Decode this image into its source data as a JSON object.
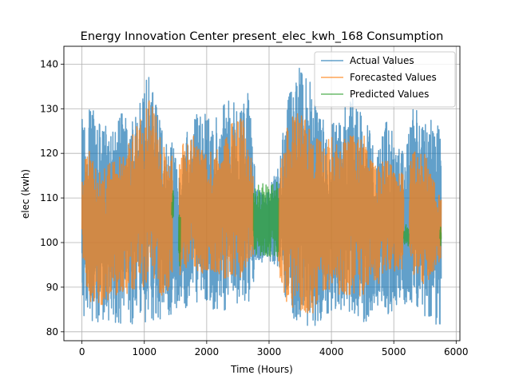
{
  "chart_data": {
    "type": "line",
    "title": "Energy Innovation Center present_elec_kwh_168 Consumption",
    "xlabel": "Time (Hours)",
    "ylabel": "elec (kwh)",
    "xlim": [
      -290,
      6060
    ],
    "ylim": [
      78,
      144
    ],
    "xticks": [
      0,
      1000,
      2000,
      3000,
      4000,
      5000,
      6000
    ],
    "yticks": [
      80,
      90,
      100,
      110,
      120,
      130,
      140
    ],
    "grid": true,
    "legend_position": "top-right",
    "series": [
      {
        "name": "Actual Values",
        "color": "#1f77b4",
        "x_range": [
          0,
          5760
        ],
        "envelope": {
          "x": [
            0,
            100,
            300,
            500,
            700,
            900,
            1000,
            1100,
            1300,
            1450,
            1550,
            1700,
            1900,
            2100,
            2300,
            2500,
            2700,
            2800,
            3000,
            3150,
            3300,
            3500,
            3700,
            3900,
            4100,
            4300,
            4500,
            4700,
            4900,
            5000,
            5100,
            5300,
            5500,
            5760
          ],
          "low": [
            83,
            82,
            82,
            82,
            81,
            82,
            81,
            82,
            83,
            84,
            86,
            85,
            87,
            84,
            84,
            85,
            86,
            95,
            96,
            93,
            84,
            82,
            81,
            82,
            85,
            84,
            82,
            83,
            84,
            84,
            86,
            86,
            83,
            81
          ],
          "high": [
            130,
            131,
            129,
            125,
            131,
            129,
            138,
            137,
            124,
            126,
            115,
            126,
            130,
            127,
            132,
            131,
            134,
            112,
            113,
            117,
            133,
            140,
            135,
            127,
            129,
            133,
            132,
            121,
            128,
            124,
            121,
            131,
            127,
            129
          ]
        }
      },
      {
        "name": "Forecasted Values",
        "color": "#ff7f0e",
        "x_range": [
          0,
          5760
        ],
        "gaps": [
          [
            1450,
            1560
          ],
          [
            2750,
            3150
          ],
          [
            5160,
            5250
          ]
        ],
        "envelope": {
          "x": [
            0,
            100,
            300,
            500,
            700,
            900,
            1000,
            1100,
            1300,
            1450,
            1600,
            1800,
            2000,
            2200,
            2400,
            2600,
            2750,
            3150,
            3300,
            3500,
            3700,
            3900,
            4100,
            4300,
            4500,
            4700,
            4900,
            5100,
            5300,
            5500,
            5760
          ],
          "low": [
            96,
            87,
            85,
            88,
            88,
            90,
            89,
            90,
            87,
            91,
            93,
            94,
            92,
            92,
            91,
            92,
            96,
            92,
            86,
            83,
            84,
            87,
            88,
            88,
            88,
            90,
            92,
            94,
            93,
            90,
            95
          ],
          "high": [
            116,
            122,
            117,
            118,
            121,
            127,
            132,
            133,
            122,
            120,
            122,
            124,
            120,
            121,
            128,
            128,
            116,
            114,
            127,
            130,
            124,
            123,
            124,
            124,
            125,
            118,
            120,
            116,
            121,
            120,
            110
          ]
        }
      },
      {
        "name": "Predicted Values",
        "color": "#2ca02c",
        "x_range": [
          1440,
          5760
        ],
        "segments": [
          {
            "x": [
              1440,
              1470
            ],
            "low": 104,
            "high": 112
          },
          {
            "x": [
              1550,
              1580
            ],
            "low": 94,
            "high": 107
          },
          {
            "x": [
              2750,
              3150
            ],
            "low": 96,
            "high": 114
          },
          {
            "x": [
              5160,
              5240
            ],
            "low": 99,
            "high": 104
          },
          {
            "x": [
              5740,
              5760
            ],
            "low": 99,
            "high": 104
          }
        ]
      }
    ]
  }
}
